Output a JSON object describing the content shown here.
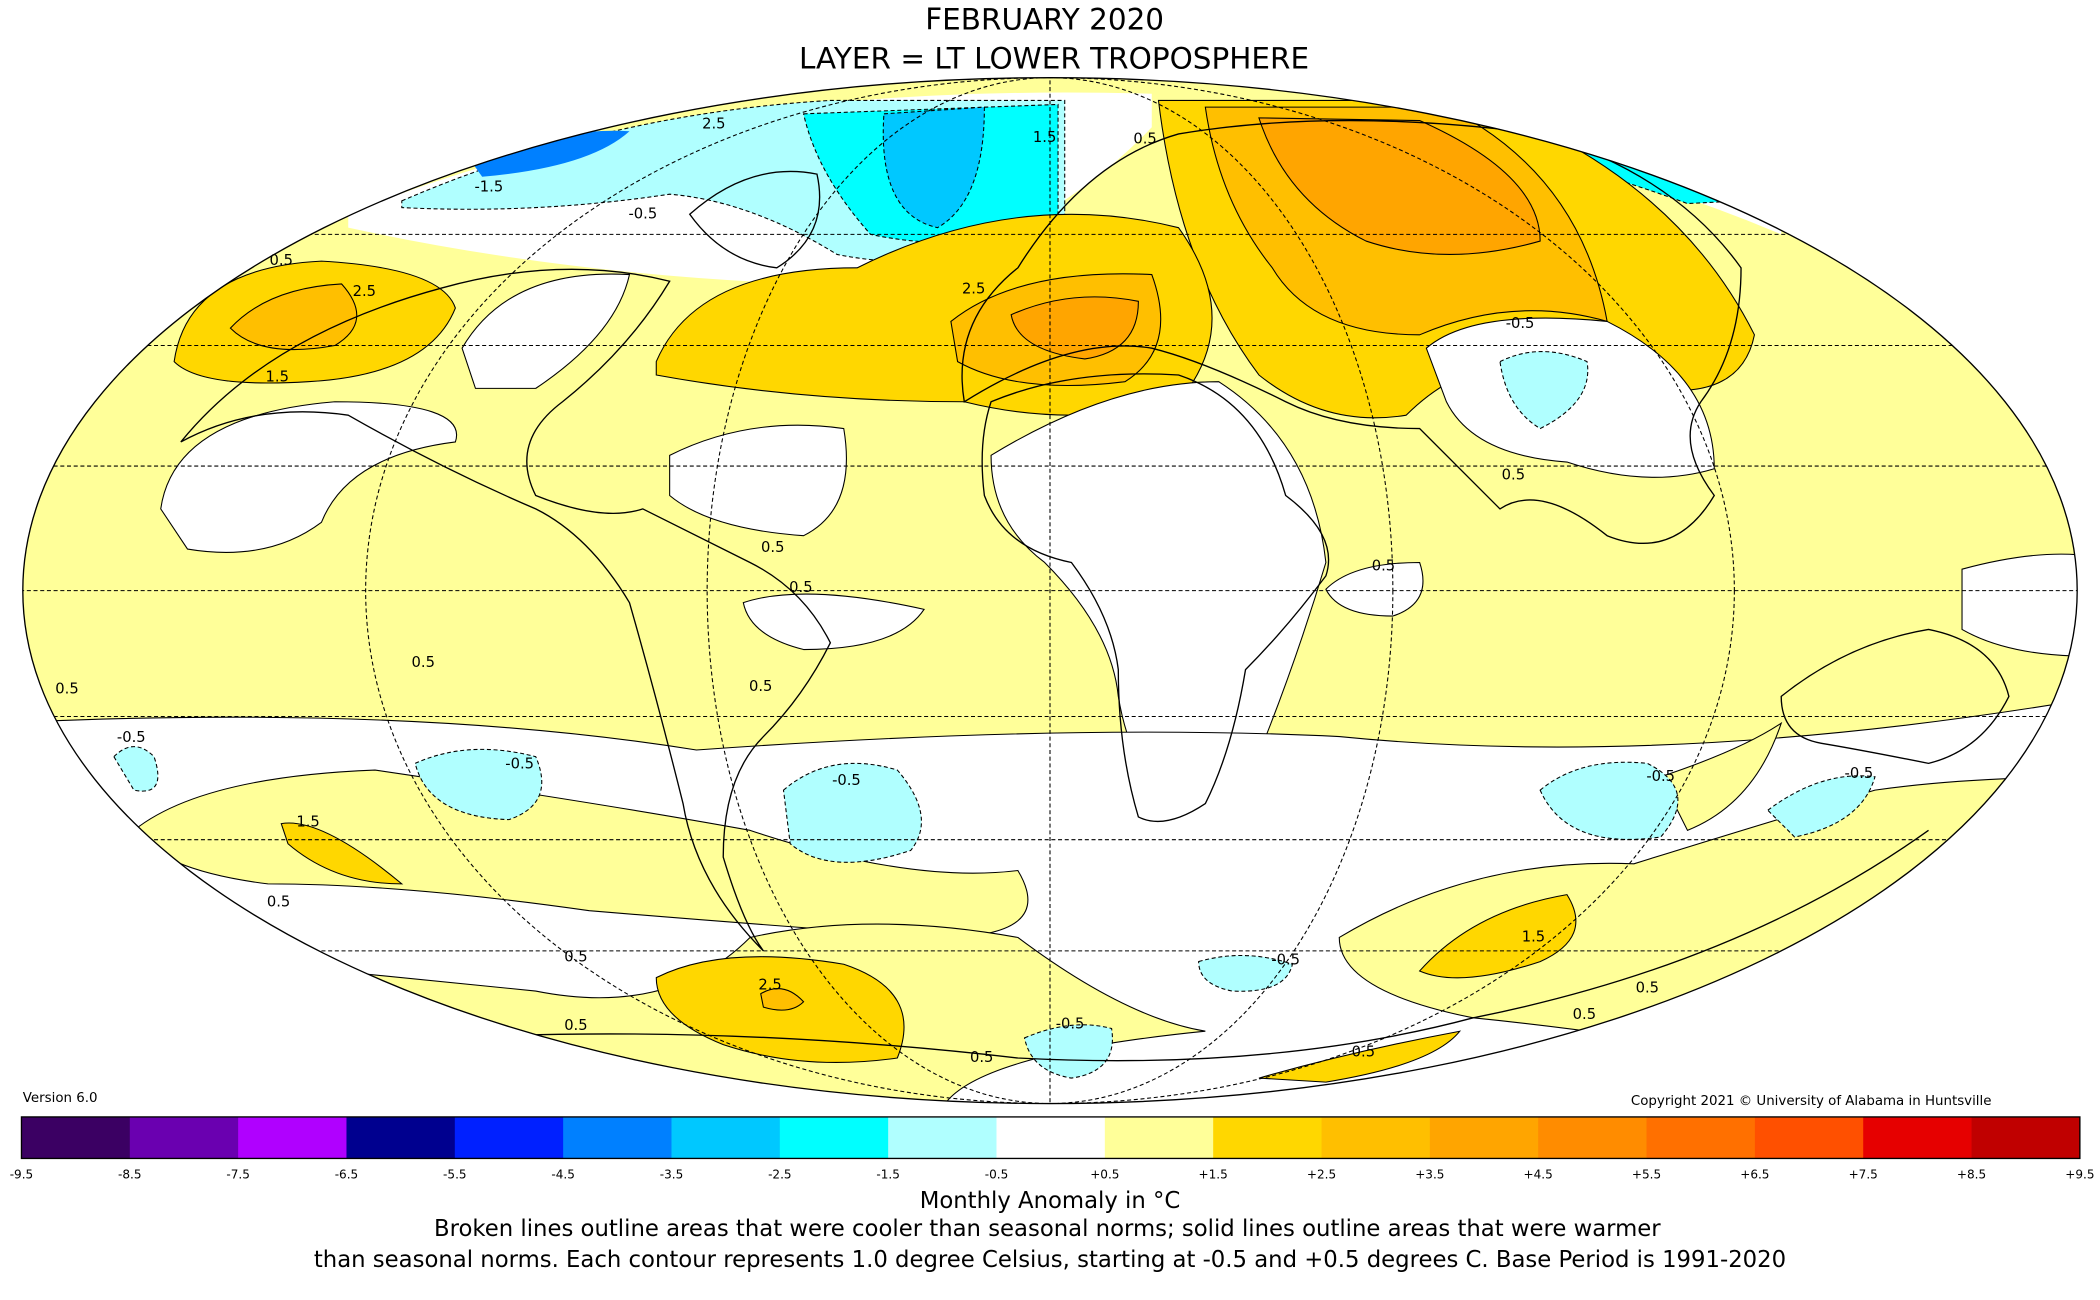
{
  "header": {
    "title_lines": [
      "FEBRUARY 2020",
      "LAYER = LT LOWER TROPOSPHERE"
    ]
  },
  "version": "Version 6.0",
  "copyright": "Copyright 2021 © University of Alabama in Huntsville",
  "colorbar": {
    "colors": [
      "#3b0063",
      "#6a00b0",
      "#b000ff",
      "#00008f",
      "#0020ff",
      "#0080ff",
      "#00c8ff",
      "#00ffff",
      "#b0ffff",
      "#ffffff",
      "#ffff99",
      "#ffd700",
      "#ffbf00",
      "#ffa500",
      "#ff8c00",
      "#ff7000",
      "#ff5000",
      "#e60000",
      "#c00000"
    ],
    "ticks": [
      "-9.5",
      "-8.5",
      "-7.5",
      "-6.5",
      "-5.5",
      "-4.5",
      "-3.5",
      "-2.5",
      "-1.5",
      "-0.5",
      "+0.5",
      "+1.5",
      "+2.5",
      "+3.5",
      "+4.5",
      "+5.5",
      "+6.5",
      "+7.5",
      "+8.5",
      "+9.5"
    ],
    "label": "Monthly Anomaly in °C"
  },
  "caption": [
    "Broken lines outline areas that were cooler than seasonal norms; solid lines outline areas that were warmer",
    "than seasonal norms. Each contour represents 1.0 degree Celsius, starting at -0.5 and +0.5 degrees C. Base Period is 1991-2020"
  ],
  "contour_labels": [
    "2.5",
    "1.5",
    "0.5",
    "-1.5",
    "-0.5",
    "0.5",
    "2.5",
    "1.5",
    "2.5",
    "-0.5",
    "0.5",
    "0.5",
    "0.5",
    "0.5",
    "0.5",
    "0.5",
    "-0.5",
    "-0.5",
    "-0.5",
    "1.5",
    "0.5",
    "0.5",
    "0.5",
    "2.5",
    "-0.5",
    "1.5",
    "0.5",
    "0.5",
    "-0.5",
    "0.5",
    "0.5",
    "0.5",
    "-0.5",
    "-0.5"
  ]
}
